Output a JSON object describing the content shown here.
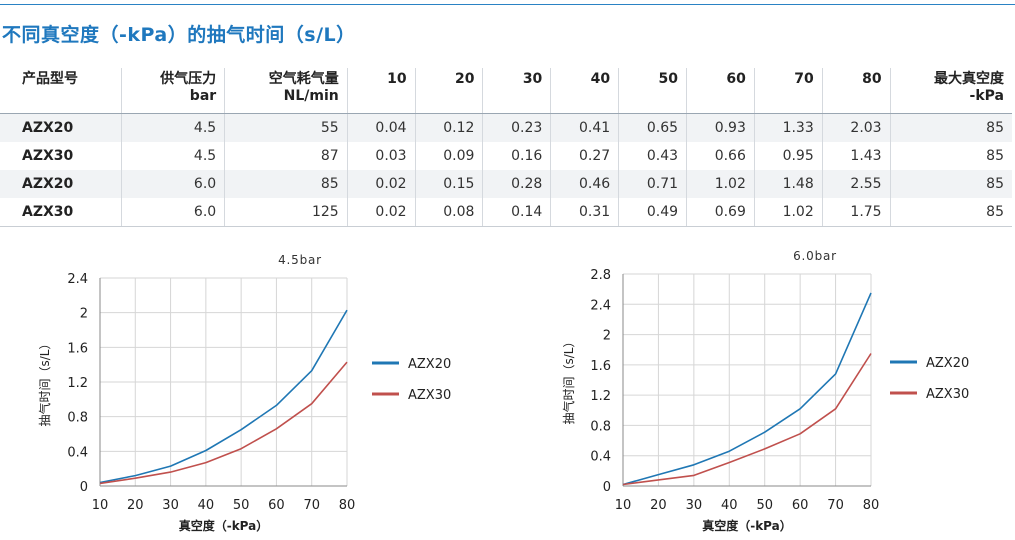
{
  "page": {
    "title": "不同真空度（-kPa）的抽气时间（s/L）"
  },
  "table": {
    "headers": [
      {
        "l1": "产品型号",
        "l2": ""
      },
      {
        "l1": "供气压力",
        "l2": "bar"
      },
      {
        "l1": "空气耗气量",
        "l2": "NL/min"
      },
      {
        "l1": "10",
        "l2": ""
      },
      {
        "l1": "20",
        "l2": ""
      },
      {
        "l1": "30",
        "l2": ""
      },
      {
        "l1": "40",
        "l2": ""
      },
      {
        "l1": "50",
        "l2": ""
      },
      {
        "l1": "60",
        "l2": ""
      },
      {
        "l1": "70",
        "l2": ""
      },
      {
        "l1": "80",
        "l2": ""
      },
      {
        "l1": "最大真空度",
        "l2": "-kPa"
      }
    ],
    "rows": [
      [
        "AZX20",
        "4.5",
        "55",
        "0.04",
        "0.12",
        "0.23",
        "0.41",
        "0.65",
        "0.93",
        "1.33",
        "2.03",
        "85"
      ],
      [
        "AZX30",
        "4.5",
        "87",
        "0.03",
        "0.09",
        "0.16",
        "0.27",
        "0.43",
        "0.66",
        "0.95",
        "1.43",
        "85"
      ],
      [
        "AZX20",
        "6.0",
        "85",
        "0.02",
        "0.15",
        "0.28",
        "0.46",
        "0.71",
        "1.02",
        "1.48",
        "2.55",
        "85"
      ],
      [
        "AZX30",
        "6.0",
        "125",
        "0.02",
        "0.08",
        "0.14",
        "0.31",
        "0.49",
        "0.69",
        "1.02",
        "1.75",
        "85"
      ]
    ]
  },
  "chart_data": [
    {
      "type": "line",
      "title": "4.5bar",
      "xlabel": "真空度（-kPa）",
      "ylabel": "抽气时间（s/L）",
      "x": [
        10,
        20,
        30,
        40,
        50,
        60,
        70,
        80
      ],
      "ylim": [
        0,
        2.4
      ],
      "yticks": [
        0,
        0.4,
        0.8,
        1.2,
        1.6,
        2,
        2.4
      ],
      "grid": true,
      "legend_position": "right",
      "series": [
        {
          "name": "AZX20",
          "color": "#1f77b4",
          "values": [
            0.04,
            0.12,
            0.23,
            0.41,
            0.65,
            0.93,
            1.33,
            2.03
          ]
        },
        {
          "name": "AZX30",
          "color": "#c0504d",
          "values": [
            0.03,
            0.09,
            0.16,
            0.27,
            0.43,
            0.66,
            0.95,
            1.43
          ]
        }
      ]
    },
    {
      "type": "line",
      "title": "6.0bar",
      "xlabel": "真空度（-kPa）",
      "ylabel": "抽气时间（s/L）",
      "x": [
        10,
        20,
        30,
        40,
        50,
        60,
        70,
        80
      ],
      "ylim": [
        0,
        2.8
      ],
      "yticks": [
        0,
        0.4,
        0.8,
        1.2,
        1.6,
        2,
        2.4,
        2.8
      ],
      "grid": true,
      "legend_position": "right",
      "series": [
        {
          "name": "AZX20",
          "color": "#1f77b4",
          "values": [
            0.02,
            0.15,
            0.28,
            0.46,
            0.71,
            1.02,
            1.48,
            2.55
          ]
        },
        {
          "name": "AZX30",
          "color": "#c0504d",
          "values": [
            0.02,
            0.08,
            0.14,
            0.31,
            0.49,
            0.69,
            1.02,
            1.75
          ]
        }
      ]
    }
  ]
}
